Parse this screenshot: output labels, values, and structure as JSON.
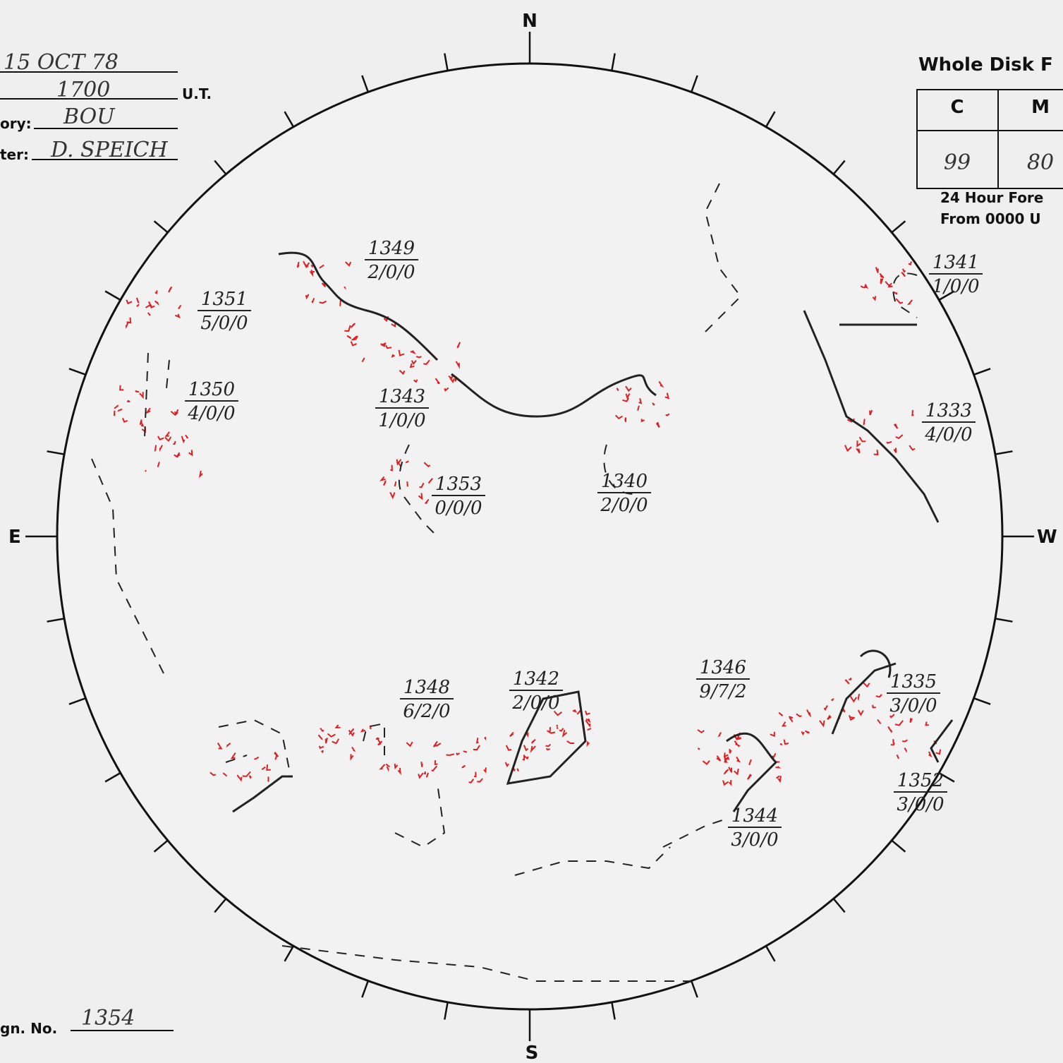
{
  "form": {
    "date": "15 OCT 78",
    "time": "1700",
    "time_unit": "U.T.",
    "observatory_label": "ory:",
    "observatory": "BOU",
    "reporter_label": "ter:",
    "reporter": "D. SPEICH",
    "number_label": "gn. No.",
    "number": "1354"
  },
  "flare_box": {
    "title": "Whole Disk F",
    "headers": [
      "C",
      "M"
    ],
    "values": [
      "99",
      "80"
    ],
    "note_lines": [
      "24 Hour Fore",
      "From 0000 U"
    ]
  },
  "compass": {
    "north": "N",
    "south": "S",
    "east": "E",
    "west": "W"
  },
  "regions": [
    {
      "number": "1349",
      "class": "2/0/0"
    },
    {
      "number": "1351",
      "class": "5/0/0"
    },
    {
      "number": "1350",
      "class": "4/0/0"
    },
    {
      "number": "1343",
      "class": "1/0/0"
    },
    {
      "number": "1353",
      "class": "0/0/0"
    },
    {
      "number": "1340",
      "class": "2/0/0"
    },
    {
      "number": "1341",
      "class": "1/0/0"
    },
    {
      "number": "1333",
      "class": "4/0/0"
    },
    {
      "number": "1348",
      "class": "6/2/0"
    },
    {
      "number": "1342",
      "class": "2/0/0"
    },
    {
      "number": "1346",
      "class": "9/7/2"
    },
    {
      "number": "1335",
      "class": "3/0/0"
    },
    {
      "number": "1352",
      "class": "3/0/0"
    },
    {
      "number": "1344",
      "class": "3/0/0"
    }
  ]
}
